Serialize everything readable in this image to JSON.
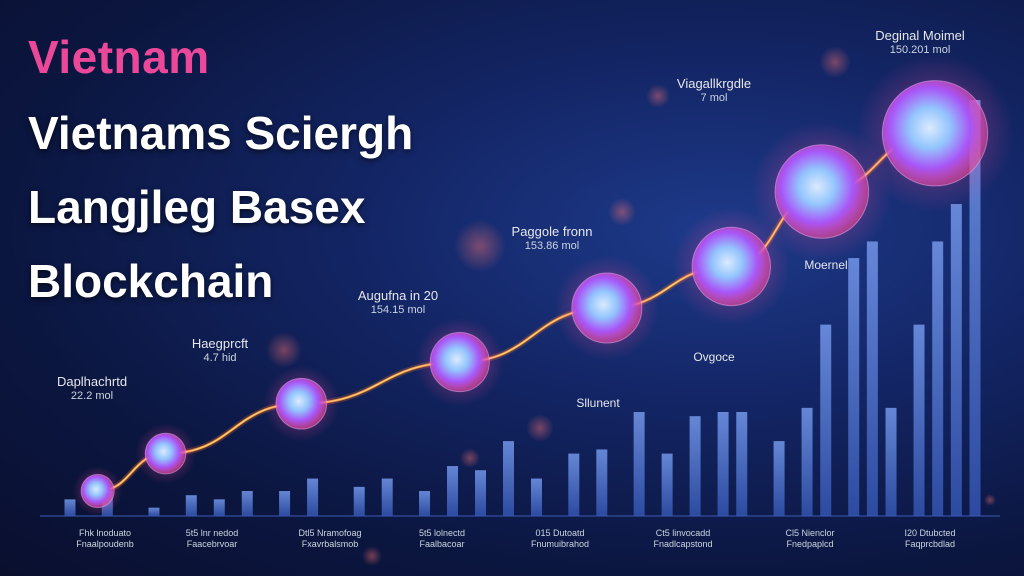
{
  "titles": {
    "accent": "Vietnam",
    "line1": "Vietnams Sciergh",
    "line2": "Langjleg Basex",
    "line3": "Blockchain"
  },
  "colors": {
    "background": "#0b1640",
    "accent": "#ec4899",
    "bar": "#4f7fd6",
    "line": "#f97316",
    "node_glow": "#ec4899",
    "node_core": "#60a5fa"
  },
  "annotations": [
    {
      "label": "Daplhachrtd",
      "value": "22.2 mol"
    },
    {
      "label": "Haegprcft",
      "value": "4.7 hid"
    },
    {
      "label": "Augufna in 20",
      "value": "154.15 mol"
    },
    {
      "label": "Paggole fronn",
      "value": "153.86 mol"
    },
    {
      "label": "Viagallkrgdle",
      "value": "7 mol"
    },
    {
      "label": "Deginal Moimel",
      "value": "150.201 mol"
    }
  ],
  "mid_labels": [
    "Moernel",
    "Ovgoce",
    "Sllunent"
  ],
  "x_ticks": [
    [
      "Fhk lnoduato",
      "Fnaalpoudenb"
    ],
    [
      "5t5 lnr nedod",
      "Faacebrvoar"
    ],
    [
      "Dtl5 Nramofoag",
      "Fxavrbalsmob"
    ],
    [
      "5t5 lolnectd",
      "Faalbacoar"
    ],
    [
      "015 Dutoatd",
      "Fnumuibrahod"
    ],
    [
      "Ct5 linvocadd",
      "Fnadlcapstond"
    ],
    [
      "Cl5 Nienclor",
      "Fnedpaplcd"
    ],
    [
      "I20 Dtubcted",
      "Faqprcbdlad"
    ]
  ],
  "chart_data": {
    "type": "line",
    "title": "",
    "xlabel": "",
    "ylabel": "",
    "x": [
      "Fhk lnoduato",
      "5t5 lnr nedod",
      "Dtl5 Nramofoag",
      "5t5 lolnectd",
      "015 Dutoatd",
      "Ct5 linvocadd",
      "Cl5 Nienclor",
      "I20 Dtubcted"
    ],
    "ylim": [
      0,
      100
    ],
    "grid": false,
    "legend": "none",
    "line_nodes": [
      {
        "x": 0.2,
        "y": 6
      },
      {
        "x": 0.8,
        "y": 15
      },
      {
        "x": 2.0,
        "y": 27
      },
      {
        "x": 3.4,
        "y": 37
      },
      {
        "x": 4.7,
        "y": 50
      },
      {
        "x": 5.8,
        "y": 60
      },
      {
        "x": 6.6,
        "y": 78
      },
      {
        "x": 7.6,
        "y": 92
      }
    ],
    "bars": [
      {
        "x": 0.0,
        "value": 4
      },
      {
        "x": 0.4,
        "value": 6
      },
      {
        "x": 0.9,
        "value": 2
      },
      {
        "x": 1.3,
        "value": 5
      },
      {
        "x": 1.6,
        "value": 4
      },
      {
        "x": 1.9,
        "value": 6
      },
      {
        "x": 2.3,
        "value": 6
      },
      {
        "x": 2.6,
        "value": 9
      },
      {
        "x": 3.1,
        "value": 7
      },
      {
        "x": 3.4,
        "value": 9
      },
      {
        "x": 3.8,
        "value": 6
      },
      {
        "x": 4.1,
        "value": 12
      },
      {
        "x": 4.4,
        "value": 11
      },
      {
        "x": 4.7,
        "value": 18
      },
      {
        "x": 5.0,
        "value": 9
      },
      {
        "x": 5.4,
        "value": 15
      },
      {
        "x": 5.7,
        "value": 16
      },
      {
        "x": 6.1,
        "value": 25
      },
      {
        "x": 6.4,
        "value": 15
      },
      {
        "x": 6.7,
        "value": 24
      },
      {
        "x": 7.0,
        "value": 25
      },
      {
        "x": 7.2,
        "value": 25
      },
      {
        "x": 7.6,
        "value": 18
      },
      {
        "x": 7.9,
        "value": 26
      },
      {
        "x": 8.1,
        "value": 46
      },
      {
        "x": 8.4,
        "value": 62
      },
      {
        "x": 8.6,
        "value": 66
      },
      {
        "x": 8.8,
        "value": 26
      },
      {
        "x": 9.1,
        "value": 46
      },
      {
        "x": 9.3,
        "value": 66
      },
      {
        "x": 9.5,
        "value": 75
      },
      {
        "x": 9.7,
        "value": 100
      }
    ]
  }
}
